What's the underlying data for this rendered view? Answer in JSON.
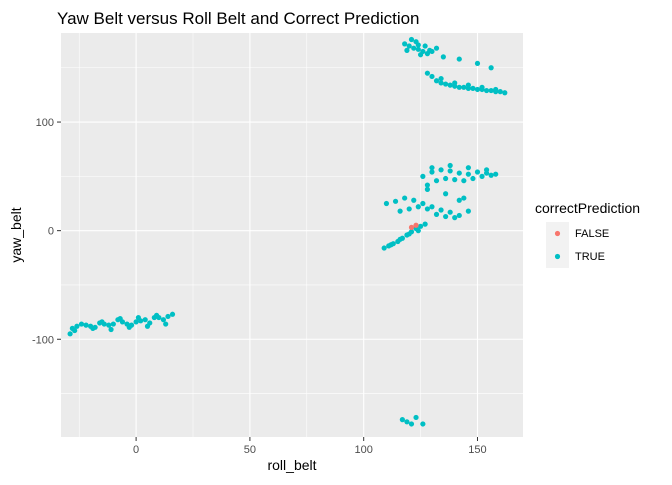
{
  "chart_data": {
    "type": "scatter",
    "title": "Yaw Belt versus Roll Belt and Correct Prediction",
    "xlabel": "roll_belt",
    "ylabel": "yaw_belt",
    "xlim": [
      -33,
      170
    ],
    "ylim": [
      -190,
      182
    ],
    "x_ticks": [
      0,
      50,
      100,
      150
    ],
    "y_ticks": [
      -100,
      0,
      100
    ],
    "x_tick_labels": [
      "0",
      "50",
      "100",
      "150"
    ],
    "y_tick_labels": [
      "-100",
      "0",
      "100"
    ],
    "grid": true,
    "legend": {
      "title": "correctPrediction",
      "position": "right",
      "entries": [
        {
          "label": "FALSE",
          "color": "#F8766D"
        },
        {
          "label": "TRUE",
          "color": "#00BFC4"
        }
      ]
    },
    "series": [
      {
        "name": "TRUE",
        "color": "#00BFC4",
        "x": [
          -29,
          -26,
          -22,
          -18,
          -14,
          -10,
          -6,
          -2,
          2,
          6,
          10,
          14,
          16,
          -28,
          -24,
          -20,
          -16,
          -12,
          -8,
          -4,
          0,
          4,
          8,
          12,
          -27,
          -19,
          -11,
          -3,
          5,
          13,
          -15,
          -7,
          1,
          9,
          118,
          120,
          122,
          124,
          126,
          128,
          121,
          123,
          125,
          127,
          129,
          119,
          124,
          130,
          132,
          128,
          132,
          136,
          140,
          144,
          148,
          152,
          156,
          160,
          130,
          134,
          138,
          142,
          146,
          150,
          154,
          158,
          162,
          134,
          140,
          146,
          152,
          158,
          135,
          142,
          150,
          156,
          126,
          130,
          134,
          138,
          142,
          146,
          150,
          154,
          158,
          128,
          132,
          136,
          140,
          144,
          148,
          152,
          156,
          130,
          138,
          146,
          154,
          110,
          114,
          118,
          122,
          126,
          130,
          134,
          138,
          142,
          146,
          116,
          120,
          124,
          128,
          132,
          136,
          140,
          144,
          128,
          136,
          142,
          109,
          111,
          113,
          115,
          117,
          119,
          121,
          123,
          125,
          127,
          112,
          116,
          120,
          124,
          117,
          119,
          121,
          123,
          126
        ],
        "y": [
          -95,
          -88,
          -87,
          -89,
          -86,
          -86,
          -84,
          -87,
          -83,
          -85,
          -80,
          -79,
          -77,
          -90,
          -86,
          -88,
          -85,
          -87,
          -82,
          -86,
          -84,
          -82,
          -80,
          -82,
          -92,
          -90,
          -91,
          -89,
          -88,
          -86,
          -84,
          -81,
          -80,
          -78,
          172,
          170,
          168,
          167,
          165,
          163,
          176,
          174,
          162,
          170,
          166,
          166,
          171,
          165,
          168,
          145,
          138,
          135,
          133,
          132,
          131,
          130,
          129,
          128,
          142,
          136,
          134,
          132,
          131,
          130,
          129,
          128,
          127,
          140,
          136,
          134,
          132,
          130,
          160,
          158,
          154,
          150,
          50,
          54,
          56,
          55,
          53,
          52,
          54,
          53,
          52,
          42,
          46,
          48,
          47,
          46,
          48,
          50,
          51,
          58,
          60,
          58,
          56,
          25,
          27,
          30,
          28,
          25,
          22,
          19,
          17,
          14,
          18,
          18,
          20,
          22,
          20,
          15,
          13,
          12,
          30,
          38,
          34,
          28,
          -16,
          -14,
          -12,
          -10,
          -7,
          -4,
          -1,
          2,
          4,
          6,
          -13,
          -8,
          -3,
          0,
          -174,
          -176,
          -178,
          -172,
          -178
        ]
      },
      {
        "name": "FALSE",
        "color": "#F8766D",
        "x": [
          121,
          123
        ],
        "y": [
          3,
          5
        ]
      }
    ]
  }
}
